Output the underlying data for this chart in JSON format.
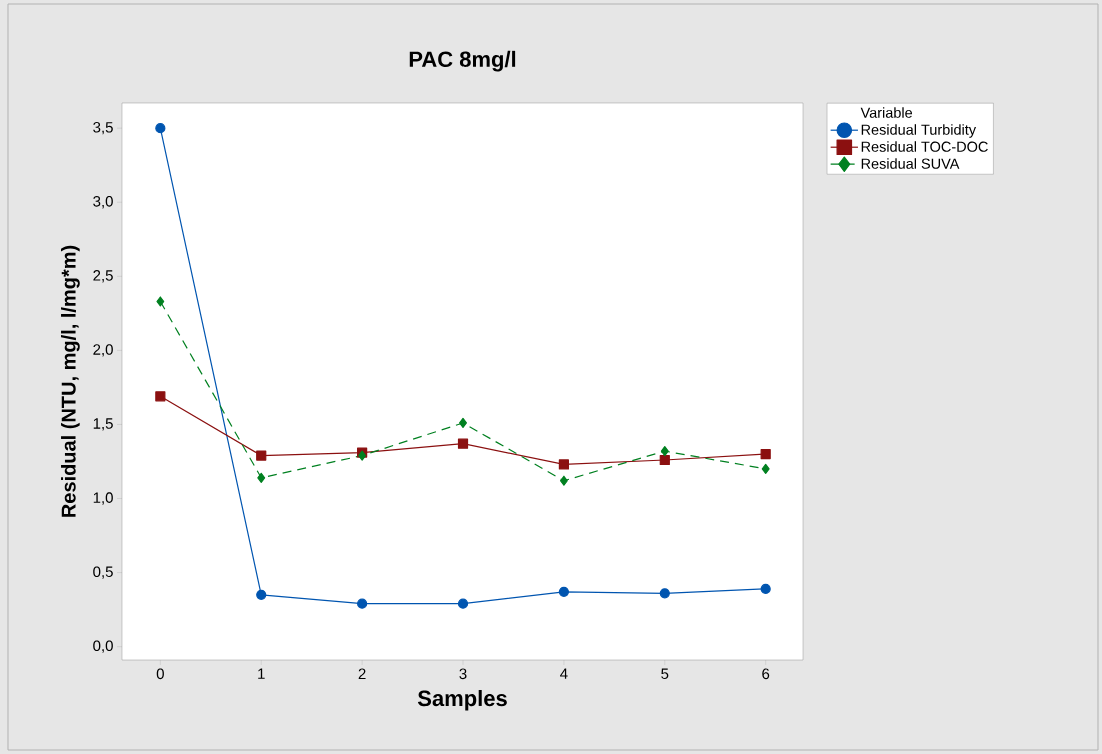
{
  "chart_data": {
    "type": "line",
    "title": "PAC  8mg/l",
    "xlabel": "Samples",
    "ylabel": "Residual (NTU, mg/l, l/mg*m)",
    "legend_title": "Variable",
    "legend": "right",
    "grid": false,
    "x": [
      0,
      1,
      2,
      3,
      4,
      5,
      6
    ],
    "series": [
      {
        "name": "Residual Turbidity",
        "color": "#0055b0",
        "marker": "circle",
        "line_style": "solid",
        "values": [
          3.5,
          0.35,
          0.29,
          0.29,
          0.37,
          0.36,
          0.39
        ]
      },
      {
        "name": "Residual TOC-DOC",
        "color": "#8b1010",
        "marker": "square",
        "line_style": "solid",
        "values": [
          1.69,
          1.29,
          1.31,
          1.37,
          1.23,
          1.26,
          1.3
        ]
      },
      {
        "name": "Residual SUVA",
        "color": "#008020",
        "marker": "diamond",
        "line_style": "dashed",
        "values": [
          2.33,
          1.14,
          1.29,
          1.51,
          1.12,
          1.32,
          1.2
        ]
      }
    ],
    "xlim": [
      -0.38,
      6.37
    ],
    "ylim": [
      -0.09,
      3.67
    ],
    "xticks": [
      0,
      1,
      2,
      3,
      4,
      5,
      6
    ],
    "yticks": [
      {
        "value": 0,
        "label": "0,0"
      },
      {
        "value": 0.5,
        "label": "0,5"
      },
      {
        "value": 1,
        "label": "1,0"
      },
      {
        "value": 1.5,
        "label": "1,5"
      },
      {
        "value": 2,
        "label": "2,0"
      },
      {
        "value": 2.5,
        "label": "2,5"
      },
      {
        "value": 3,
        "label": "3,0"
      },
      {
        "value": 3.5,
        "label": "3,5"
      }
    ]
  }
}
